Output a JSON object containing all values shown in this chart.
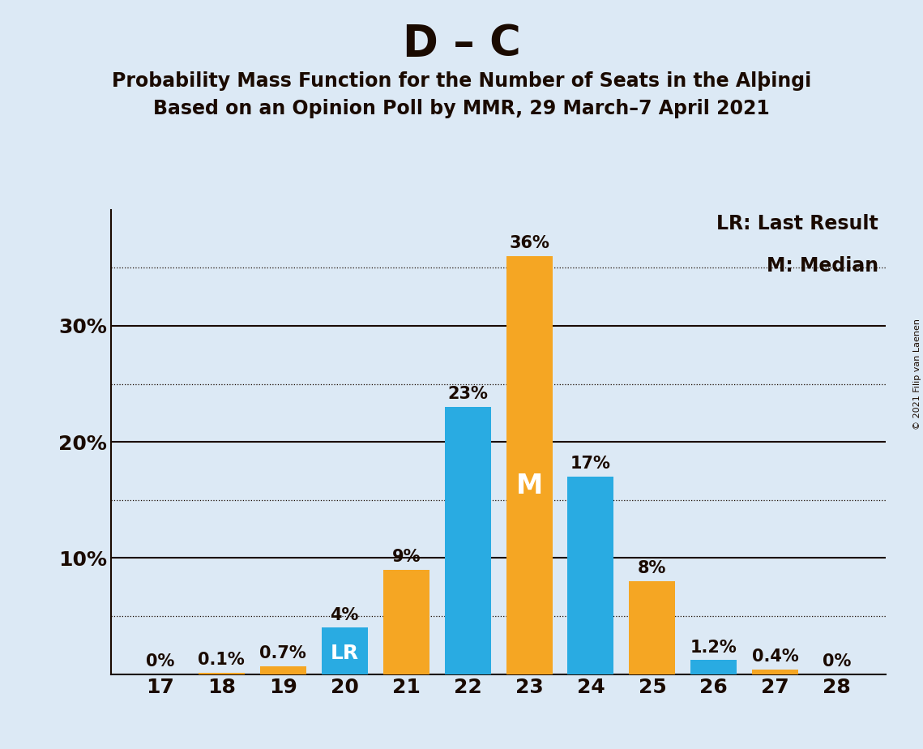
{
  "title": "D – C",
  "subtitle1": "Probability Mass Function for the Number of Seats in the Alþingi",
  "subtitle2": "Based on an Opinion Poll by MMR, 29 March–7 April 2021",
  "copyright_text": "© 2021 Filip van Laenen",
  "seats": [
    17,
    18,
    19,
    20,
    21,
    22,
    23,
    24,
    25,
    26,
    27,
    28
  ],
  "pmf_values": [
    0.0,
    0.1,
    0.7,
    4.0,
    9.0,
    23.0,
    36.0,
    17.0,
    8.0,
    1.2,
    0.4,
    0.0
  ],
  "pmf_labels": [
    "0%",
    "0.1%",
    "0.7%",
    "4%",
    "9%",
    "23%",
    "36%",
    "17%",
    "8%",
    "1.2%",
    "0.4%",
    "0%"
  ],
  "bar_colors": [
    "#F5A623",
    "#F5A623",
    "#F5A623",
    "#29ABE2",
    "#F5A623",
    "#29ABE2",
    "#F5A623",
    "#29ABE2",
    "#F5A623",
    "#29ABE2",
    "#F5A623",
    "#F5A623"
  ],
  "median_seat": 23,
  "last_result_seat": 20,
  "background_color": "#DCE9F5",
  "text_color": "#1A0A00",
  "white": "#FFFFFF",
  "legend_lr": "LR: Last Result",
  "legend_m": "M: Median",
  "ytick_values": [
    0,
    10,
    20,
    30
  ],
  "ymax": 40,
  "dotted_lines": [
    5,
    15,
    25,
    35
  ],
  "solid_lines": [
    10,
    20,
    30
  ],
  "title_fontsize": 38,
  "subtitle_fontsize": 17,
  "bar_label_fontsize": 15,
  "tick_fontsize": 18,
  "inside_label_fontsize": 18,
  "legend_fontsize": 17,
  "copyright_fontsize": 8
}
